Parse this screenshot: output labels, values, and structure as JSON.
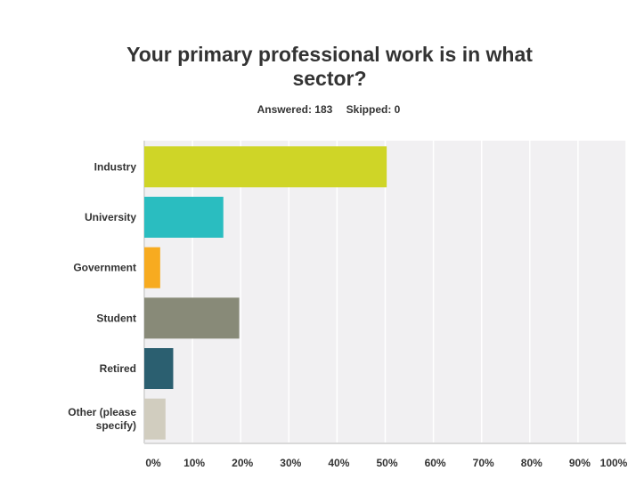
{
  "header": {
    "title": "Your primary professional work is in what sector?",
    "answered": "Answered: 183",
    "skipped": "Skipped: 0"
  },
  "colors": {
    "plot_background": "#f1f0f2",
    "gridline": "#ffffff",
    "axis": "#d9d9d9"
  },
  "chart_data": {
    "type": "bar",
    "orientation": "horizontal",
    "title": "Your primary professional work is in what sector?",
    "categories": [
      "Industry",
      "University",
      "Government",
      "Student",
      "Retired",
      "Other (please specify)"
    ],
    "category_lines": [
      [
        "Industry"
      ],
      [
        "University"
      ],
      [
        "Government"
      ],
      [
        "Student"
      ],
      [
        "Retired"
      ],
      [
        "Other (please",
        "specify)"
      ]
    ],
    "values": [
      50.3,
      16.4,
      3.3,
      19.7,
      6.0,
      4.4
    ],
    "value_unit": "%",
    "bar_colors": [
      "#cfd527",
      "#2abdc0",
      "#f7ab20",
      "#888a78",
      "#2b5f70",
      "#d1cdbf"
    ],
    "xlim": [
      0,
      100
    ],
    "ticks": [
      0,
      10,
      20,
      30,
      40,
      50,
      60,
      70,
      80,
      90,
      100
    ],
    "tick_labels": [
      "0%",
      "10%",
      "20%",
      "30%",
      "40%",
      "50%",
      "60%",
      "70%",
      "80%",
      "90%",
      "100%"
    ],
    "grid": true,
    "legend": "none"
  }
}
